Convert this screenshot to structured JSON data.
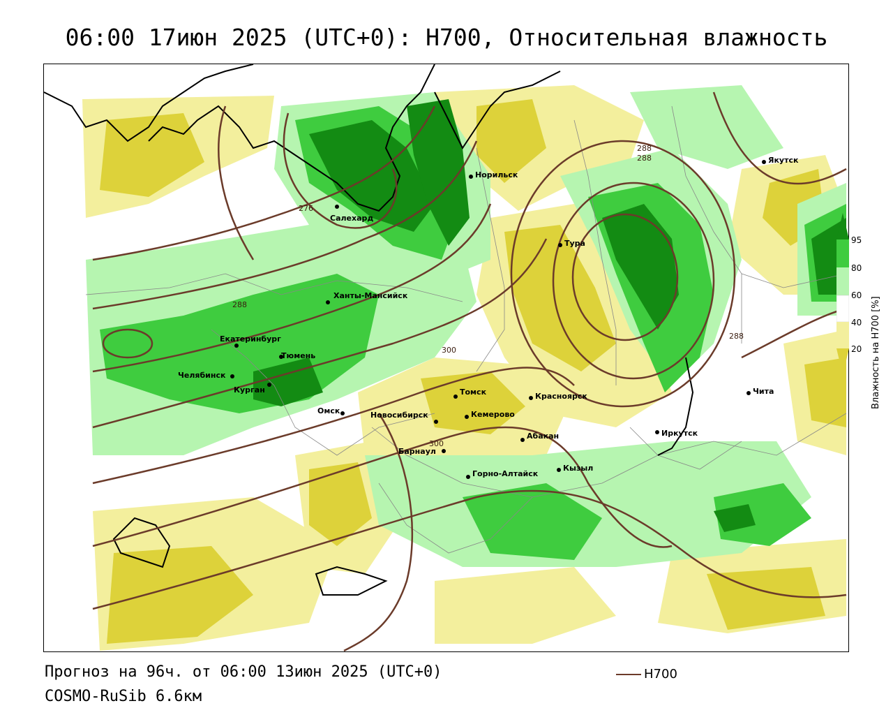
{
  "title": "06:00 17июн 2025 (UTC+0): H700, Относительная влажность",
  "forecast_line": "Прогноз на 96ч. от 06:00 13июн 2025 (UTC+0)",
  "model_line": "COSMO-RuSib 6.6км",
  "legend": {
    "label": "H700",
    "line_color": "#6b3b2a"
  },
  "colorbar": {
    "title": "Влажность на H700 [%]",
    "ticks": [
      "95",
      "80",
      "60",
      "40",
      "20"
    ],
    "colors": {
      "c95": "#138b13",
      "c80": "#3fcc3f",
      "c60": "#b6f5b0",
      "c40": "#ffffff",
      "c20": "#f3ef9d",
      "c0": "#ddd23a"
    }
  },
  "isoline_labels": [
    "276",
    "288",
    "288",
    "288",
    "300",
    "300",
    "288"
  ],
  "cities": [
    "Якутск",
    "Норильск",
    "Салехард",
    "Тура",
    "Ханты-Мансийск",
    "Екатеринбург",
    "Тюмень",
    "Челябинск",
    "Курган",
    "Омск",
    "Томск",
    "Красноярск",
    "Новосибирск",
    "Кемерово",
    "Абакан",
    "Барнаул",
    "Горно-Алтайск",
    "Кызыл",
    "Иркутск",
    "Чита"
  ]
}
